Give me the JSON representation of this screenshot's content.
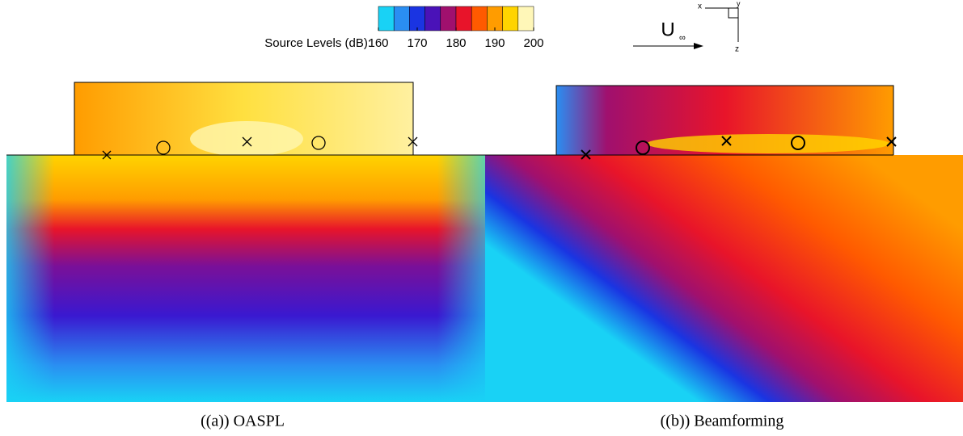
{
  "colorbar": {
    "label": "Source Levels (dB):",
    "range": [
      160,
      200
    ],
    "ticks": [
      160,
      170,
      180,
      190,
      200
    ],
    "colors": [
      "#19d2f5",
      "#2a8ef2",
      "#1a34e2",
      "#4a12b8",
      "#a0106e",
      "#e8142a",
      "#ff5a00",
      "#ff9c00",
      "#ffd400",
      "#fff7b8"
    ]
  },
  "flow": {
    "velocity": "U",
    "subscript": "∞",
    "axes": [
      "x",
      "y",
      "z"
    ]
  },
  "panels": [
    {
      "caption": "((a)) OASPL"
    },
    {
      "caption": "((b)) Beamforming"
    }
  ]
}
